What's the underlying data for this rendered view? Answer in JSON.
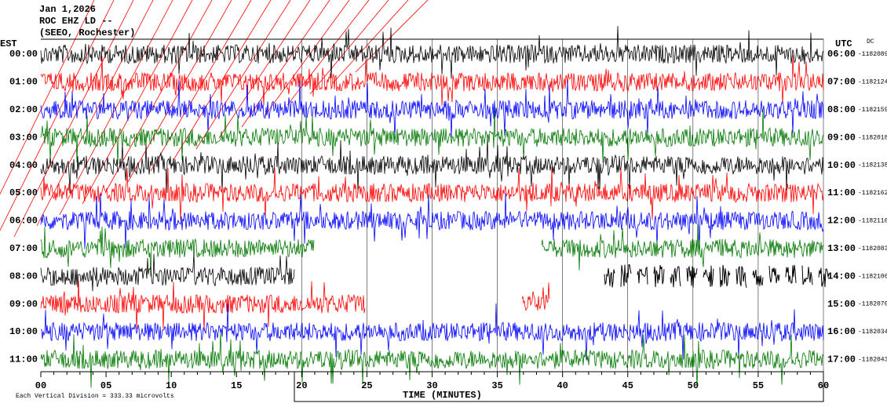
{
  "header": {
    "date": "Jan 1,2026",
    "station": "ROC EHZ LD --",
    "place": "(SEEO, Rochester)"
  },
  "left_zone": "EST",
  "right_zone": "UTC",
  "dc_heading": "DC",
  "rows": [
    {
      "left": "00:00",
      "right": "06:00",
      "dc": "-1182089"
    },
    {
      "left": "01:00",
      "right": "07:00",
      "dc": "-1182124"
    },
    {
      "left": "02:00",
      "right": "08:00",
      "dc": "-1182159"
    },
    {
      "left": "03:00",
      "right": "09:00",
      "dc": "-1182018"
    },
    {
      "left": "04:00",
      "right": "10:00",
      "dc": "-1182138"
    },
    {
      "left": "05:00",
      "right": "11:00",
      "dc": "-1182162"
    },
    {
      "left": "06:00",
      "right": "12:00",
      "dc": "-1182116"
    },
    {
      "left": "07:00",
      "right": "13:00",
      "dc": "-1182083"
    },
    {
      "left": "08:00",
      "right": "14:00",
      "dc": "-1182106"
    },
    {
      "left": "09:00",
      "right": "15:00",
      "dc": "-1182070"
    },
    {
      "left": "10:00",
      "right": "16:00",
      "dc": "-1182034"
    },
    {
      "left": "11:00",
      "right": "17:00",
      "dc": "-1182043"
    }
  ],
  "x_ticks": [
    "00",
    "05",
    "10",
    "15",
    "20",
    "25",
    "30",
    "35",
    "40",
    "45",
    "50",
    "55",
    "60"
  ],
  "x_label": "TIME (MINUTES)",
  "footer": "Each Vertical Division =  333.33 microvolts"
}
